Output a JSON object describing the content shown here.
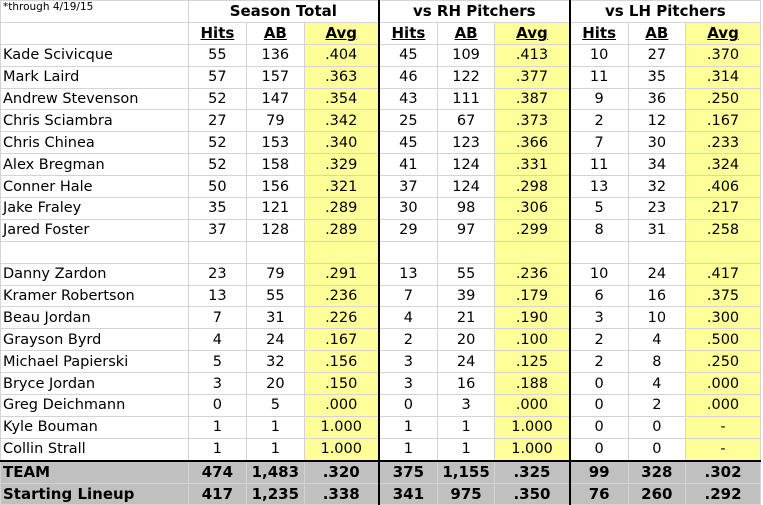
{
  "note": "*through 4/19/15",
  "groups": [
    "Season Total",
    "vs RH Pitchers",
    "vs LH Pitchers"
  ],
  "subheaders": [
    "Hits",
    "AB",
    "Avg"
  ],
  "players_top": [
    {
      "name": "Kade Scivicque",
      "vals": [
        "55",
        "136",
        ".404",
        "45",
        "109",
        ".413",
        "10",
        "27",
        ".370"
      ]
    },
    {
      "name": "Mark Laird",
      "vals": [
        "57",
        "157",
        ".363",
        "46",
        "122",
        ".377",
        "11",
        "35",
        ".314"
      ]
    },
    {
      "name": "Andrew Stevenson",
      "vals": [
        "52",
        "147",
        ".354",
        "43",
        "111",
        ".387",
        "9",
        "36",
        ".250"
      ]
    },
    {
      "name": "Chris Sciambra",
      "vals": [
        "27",
        "79",
        ".342",
        "25",
        "67",
        ".373",
        "2",
        "12",
        ".167"
      ]
    },
    {
      "name": "Chris Chinea",
      "vals": [
        "52",
        "153",
        ".340",
        "45",
        "123",
        ".366",
        "7",
        "30",
        ".233"
      ]
    },
    {
      "name": "Alex Bregman",
      "vals": [
        "52",
        "158",
        ".329",
        "41",
        "124",
        ".331",
        "11",
        "34",
        ".324"
      ]
    },
    {
      "name": "Conner Hale",
      "vals": [
        "50",
        "156",
        ".321",
        "37",
        "124",
        ".298",
        "13",
        "32",
        ".406"
      ]
    },
    {
      "name": "Jake Fraley",
      "vals": [
        "35",
        "121",
        ".289",
        "30",
        "98",
        ".306",
        "5",
        "23",
        ".217"
      ]
    },
    {
      "name": "Jared Foster",
      "vals": [
        "37",
        "128",
        ".289",
        "29",
        "97",
        ".299",
        "8",
        "31",
        ".258"
      ]
    }
  ],
  "players_bottom": [
    {
      "name": "Danny Zardon",
      "vals": [
        "23",
        "79",
        ".291",
        "13",
        "55",
        ".236",
        "10",
        "24",
        ".417"
      ]
    },
    {
      "name": "Kramer Robertson",
      "vals": [
        "13",
        "55",
        ".236",
        "7",
        "39",
        ".179",
        "6",
        "16",
        ".375"
      ]
    },
    {
      "name": "Beau Jordan",
      "vals": [
        "7",
        "31",
        ".226",
        "4",
        "21",
        ".190",
        "3",
        "10",
        ".300"
      ]
    },
    {
      "name": "Grayson Byrd",
      "vals": [
        "4",
        "24",
        ".167",
        "2",
        "20",
        ".100",
        "2",
        "4",
        ".500"
      ]
    },
    {
      "name": "Michael Papierski",
      "vals": [
        "5",
        "32",
        ".156",
        "3",
        "24",
        ".125",
        "2",
        "8",
        ".250"
      ]
    },
    {
      "name": "Bryce Jordan",
      "vals": [
        "3",
        "20",
        ".150",
        "3",
        "16",
        ".188",
        "0",
        "4",
        ".000"
      ]
    },
    {
      "name": "Greg Deichmann",
      "vals": [
        "0",
        "5",
        ".000",
        "0",
        "3",
        ".000",
        "0",
        "2",
        ".000"
      ]
    },
    {
      "name": "Kyle Bouman",
      "vals": [
        "1",
        "1",
        "1.000",
        "1",
        "1",
        "1.000",
        "0",
        "0",
        "-"
      ]
    },
    {
      "name": "Collin Strall",
      "vals": [
        "1",
        "1",
        "1.000",
        "1",
        "1",
        "1.000",
        "0",
        "0",
        "-"
      ]
    }
  ],
  "totals": [
    {
      "name": "TEAM",
      "vals": [
        "474",
        "1,483",
        ".320",
        "375",
        "1,155",
        ".325",
        "99",
        "328",
        ".302"
      ]
    },
    {
      "name": "Starting Lineup",
      "vals": [
        "417",
        "1,235",
        ".338",
        "341",
        "975",
        ".350",
        "76",
        "260",
        ".292"
      ]
    }
  ]
}
